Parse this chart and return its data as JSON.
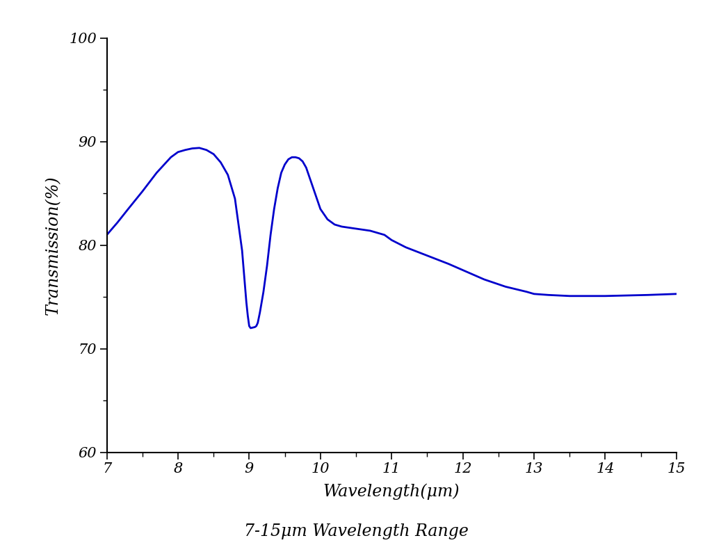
{
  "title": "7-15μm Wavelength Range",
  "xlabel": "Wavelength(μm)",
  "ylabel": "Transmission(%)",
  "line_color": "#0000cc",
  "line_width": 2.0,
  "xlim": [
    7,
    15
  ],
  "ylim": [
    60,
    100
  ],
  "xticks": [
    7,
    8,
    9,
    10,
    11,
    12,
    13,
    14,
    15
  ],
  "yticks": [
    60,
    70,
    80,
    90,
    100
  ],
  "background_color": "#ffffff",
  "x": [
    7.0,
    7.15,
    7.3,
    7.5,
    7.7,
    7.9,
    8.0,
    8.1,
    8.2,
    8.3,
    8.4,
    8.5,
    8.6,
    8.7,
    8.8,
    8.85,
    8.9,
    8.93,
    8.96,
    8.98,
    9.0,
    9.02,
    9.05,
    9.08,
    9.1,
    9.12,
    9.15,
    9.2,
    9.25,
    9.3,
    9.35,
    9.4,
    9.45,
    9.5,
    9.55,
    9.6,
    9.65,
    9.7,
    9.75,
    9.8,
    9.9,
    10.0,
    10.1,
    10.2,
    10.3,
    10.4,
    10.5,
    10.6,
    10.7,
    10.8,
    10.9,
    11.0,
    11.2,
    11.5,
    11.8,
    12.0,
    12.3,
    12.6,
    12.9,
    13.0,
    13.2,
    13.5,
    13.8,
    14.0,
    14.3,
    14.6,
    14.8,
    15.0
  ],
  "y": [
    81.0,
    82.2,
    83.5,
    85.2,
    87.0,
    88.5,
    89.0,
    89.2,
    89.35,
    89.4,
    89.2,
    88.8,
    88.0,
    86.8,
    84.5,
    82.0,
    79.5,
    77.0,
    74.5,
    73.2,
    72.2,
    72.0,
    72.05,
    72.1,
    72.2,
    72.5,
    73.5,
    75.5,
    78.0,
    81.0,
    83.5,
    85.5,
    87.0,
    87.8,
    88.3,
    88.5,
    88.5,
    88.4,
    88.1,
    87.5,
    85.5,
    83.5,
    82.5,
    82.0,
    81.8,
    81.7,
    81.6,
    81.5,
    81.4,
    81.2,
    81.0,
    80.5,
    79.8,
    79.0,
    78.2,
    77.6,
    76.7,
    76.0,
    75.5,
    75.3,
    75.2,
    75.1,
    75.1,
    75.1,
    75.15,
    75.2,
    75.25,
    75.3
  ]
}
